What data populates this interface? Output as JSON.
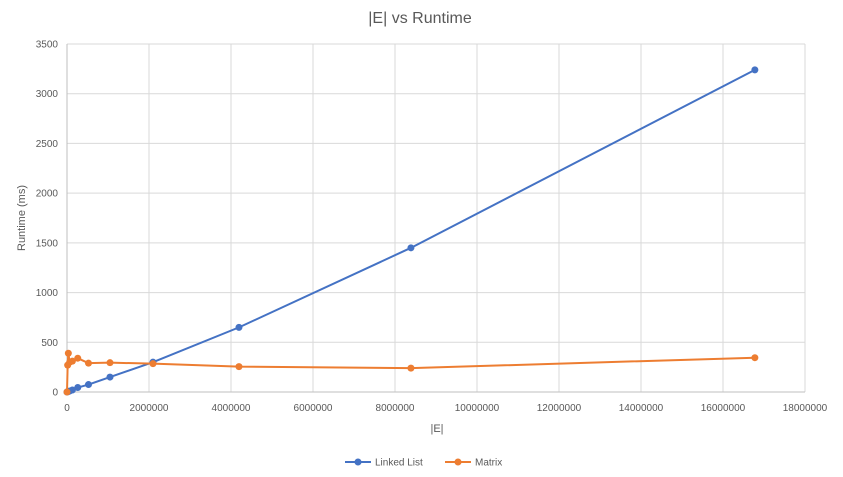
{
  "chart_data": {
    "type": "scatter",
    "title": "|E| vs Runtime",
    "xlabel": "|E|",
    "ylabel": "Runtime (ms)",
    "xlim": [
      0,
      18000000
    ],
    "ylim": [
      0,
      3500
    ],
    "xticks": [
      0,
      2000000,
      4000000,
      6000000,
      8000000,
      10000000,
      12000000,
      14000000,
      16000000,
      18000000
    ],
    "yticks": [
      0,
      500,
      1000,
      1500,
      2000,
      2500,
      3000,
      3500
    ],
    "grid": true,
    "legend_position": "bottom",
    "series": [
      {
        "name": "Linked List",
        "color": "#4472C4",
        "points": [
          [
            0,
            0
          ],
          [
            16384,
            2
          ],
          [
            32768,
            5
          ],
          [
            65536,
            10
          ],
          [
            131072,
            20
          ],
          [
            262144,
            45
          ],
          [
            524288,
            75
          ],
          [
            1048576,
            150
          ],
          [
            2097152,
            300
          ],
          [
            4194304,
            650
          ],
          [
            8388608,
            1450
          ],
          [
            16777216,
            3240
          ]
        ]
      },
      {
        "name": "Matrix",
        "color": "#ED7D31",
        "points": [
          [
            0,
            0
          ],
          [
            16384,
            270
          ],
          [
            32768,
            390
          ],
          [
            65536,
            300
          ],
          [
            131072,
            310
          ],
          [
            262144,
            340
          ],
          [
            524288,
            290
          ],
          [
            1048576,
            295
          ],
          [
            2097152,
            285
          ],
          [
            4194304,
            255
          ],
          [
            8388608,
            240
          ],
          [
            16777216,
            345
          ]
        ]
      }
    ]
  }
}
